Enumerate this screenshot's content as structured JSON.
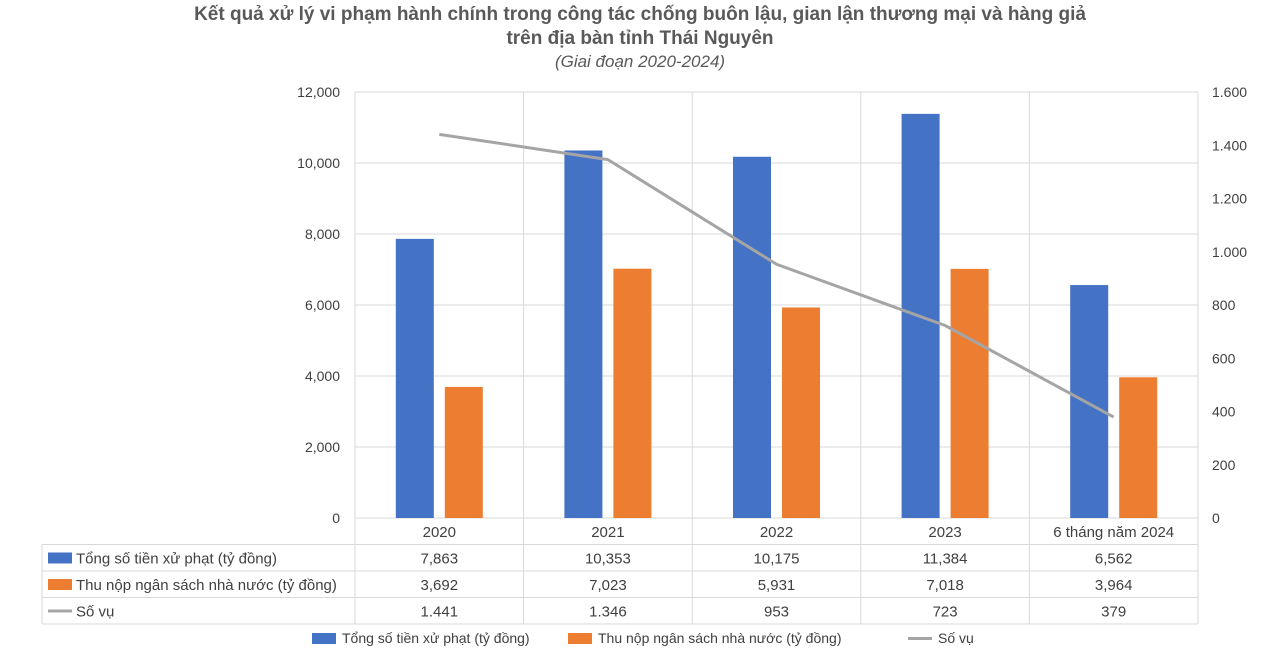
{
  "title_line1": "Kết quả xử lý vi phạm hành chính trong công tác chống buôn lậu, gian lận thương mại và hàng giả",
  "title_line2": "trên địa bàn tỉnh Thái Nguyên",
  "subtitle": "(Giai đoạn 2020-2024)",
  "chart_data": {
    "type": "bar",
    "title": "Kết quả xử lý vi phạm hành chính trong công tác chống buôn lậu, gian lận thương mại và hàng giả trên địa bàn tỉnh Thái Nguyên",
    "subtitle": "(Giai đoạn 2020-2024)",
    "categories": [
      "2020",
      "2021",
      "2022",
      "2023",
      "6 tháng năm 2024"
    ],
    "y_left": {
      "min": 0,
      "max": 12000,
      "ticks": [
        0,
        2000,
        4000,
        6000,
        8000,
        10000,
        12000
      ],
      "tick_labels": [
        "0",
        "2,000",
        "4,000",
        "6,000",
        "8,000",
        "10,000",
        "12,000"
      ]
    },
    "y_right": {
      "min": 0,
      "max": 1600,
      "ticks": [
        0,
        200,
        400,
        600,
        800,
        1000,
        1200,
        1400,
        1600
      ],
      "tick_labels": [
        "0",
        "200",
        "400",
        "600",
        "800",
        "1.000",
        "1.200",
        "1.400",
        "1.600"
      ]
    },
    "grid": true,
    "legend_position": "bottom",
    "data_table": true,
    "series": [
      {
        "name": "Tổng số tiền xử phạt (tỷ đồng)",
        "type": "bar",
        "axis": "left",
        "color": "#4472C4",
        "values": [
          7863,
          10353,
          10175,
          11384,
          6562
        ],
        "labels": [
          "7,863",
          "10,353",
          "10,175",
          "11,384",
          "6,562"
        ]
      },
      {
        "name": "Thu nộp ngân sách nhà nước (tỷ đồng)",
        "type": "bar",
        "axis": "left",
        "color": "#ED7D31",
        "values": [
          3692,
          7023,
          5931,
          7018,
          3964
        ],
        "labels": [
          "3,692",
          "7,023",
          "5,931",
          "7,018",
          "3,964"
        ]
      },
      {
        "name": "Số vụ",
        "type": "line",
        "axis": "right",
        "color": "#A5A5A5",
        "values": [
          1441,
          1346,
          953,
          723,
          379
        ],
        "labels": [
          "1.441",
          "1.346",
          "953",
          "723",
          "379"
        ]
      }
    ]
  }
}
